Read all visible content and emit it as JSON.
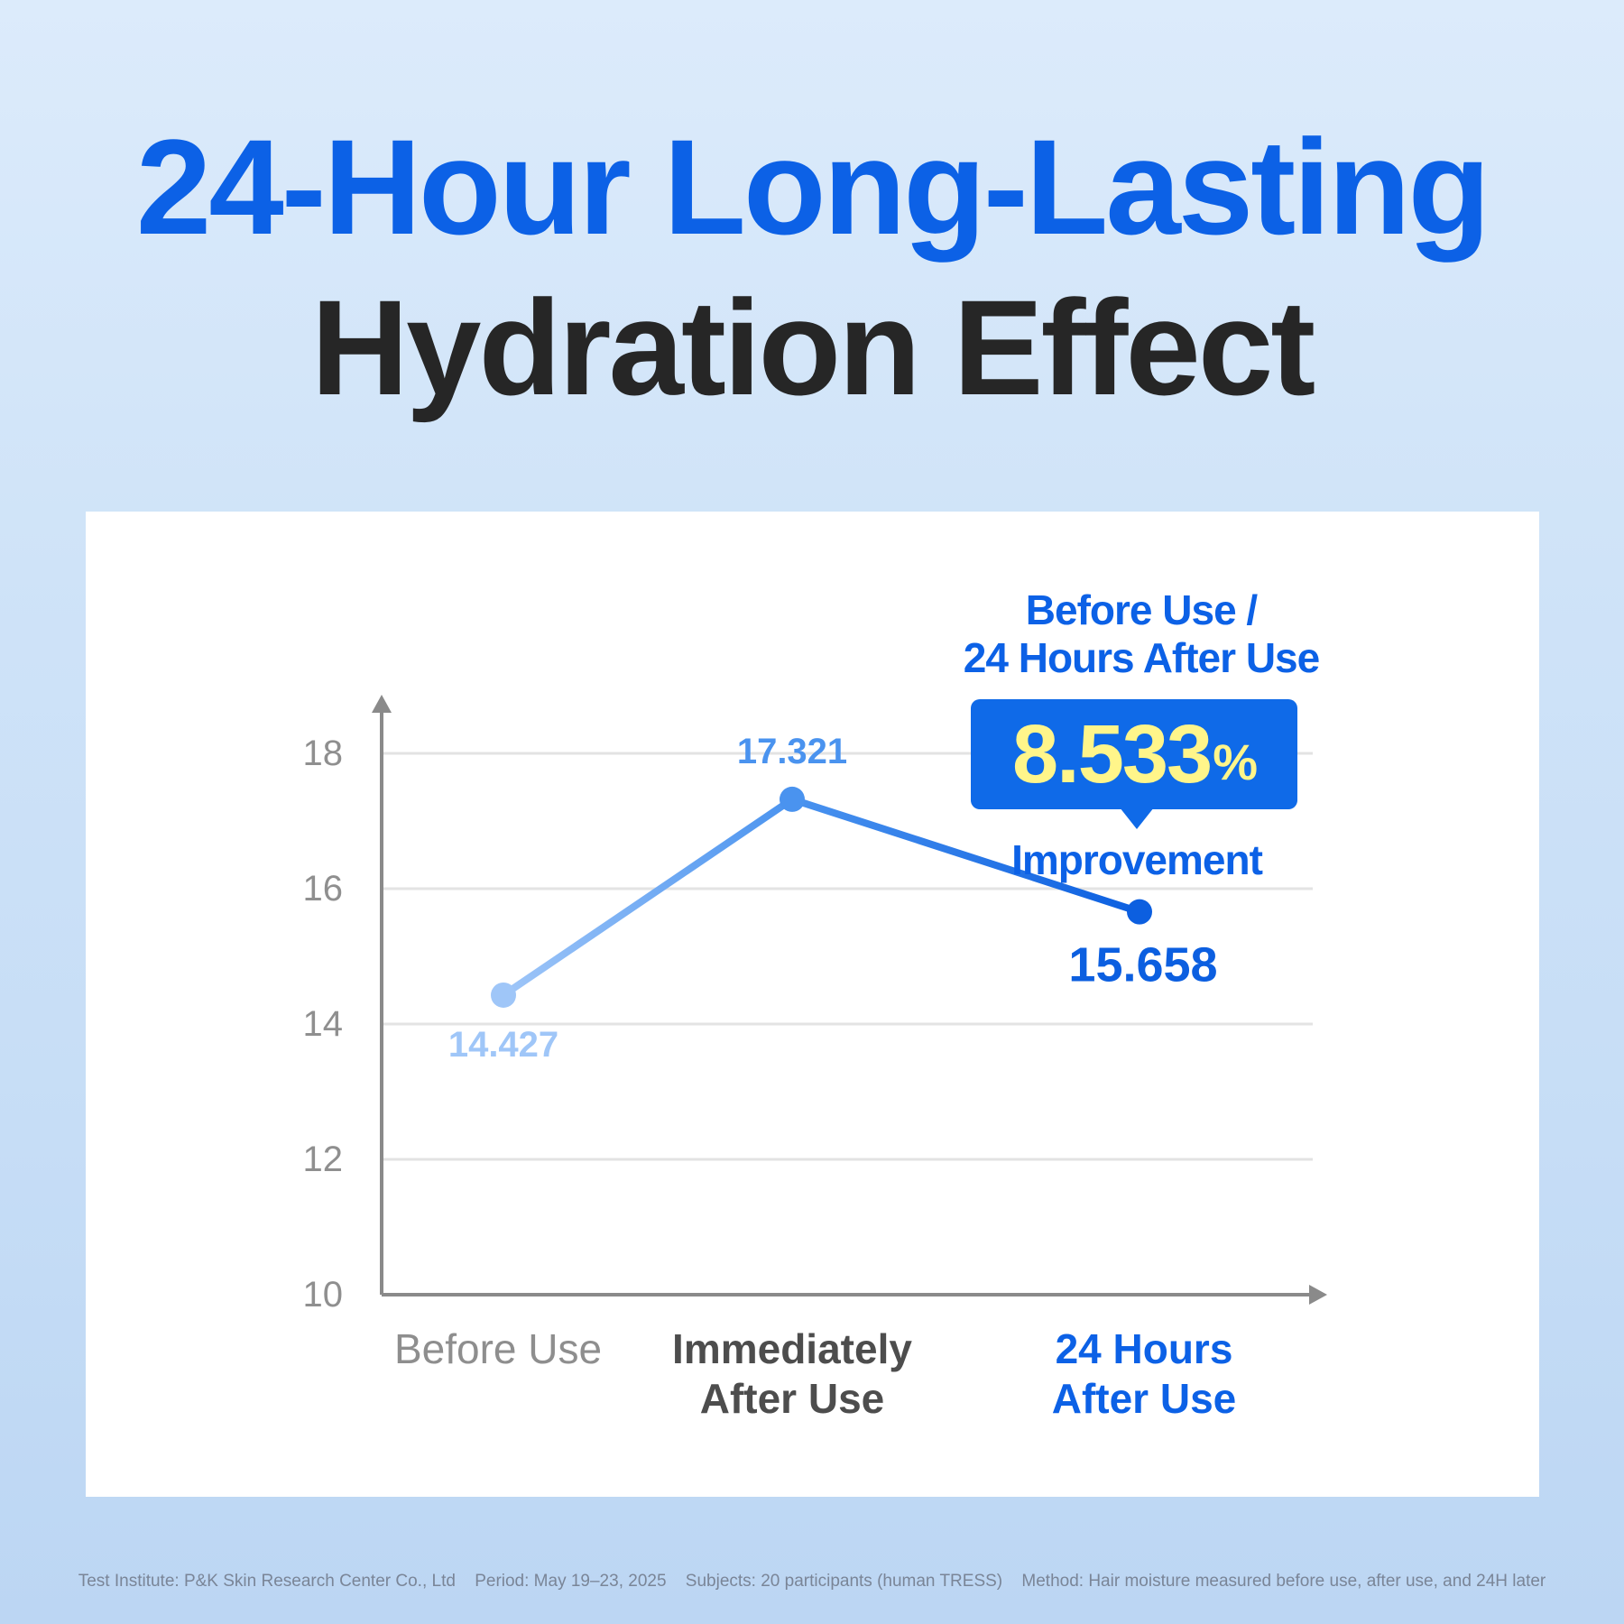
{
  "title": {
    "line1_part1": "24-Hour",
    "line1_part2": "Long-Lasting",
    "line2": "Hydration Effect"
  },
  "callout": {
    "heading_line1": "Before Use /",
    "heading_line2": "24 Hours After Use",
    "value": "8.533",
    "unit": "%",
    "label": "Improvement"
  },
  "footnote": {
    "institute": "Test Institute: P&K Skin Research Center Co., Ltd",
    "period": "Period: May 19–23, 2025",
    "subjects": "Subjects: 20 participants (human TRESS)",
    "method": "Method: Hair moisture measured before use, after use, and 24H later"
  },
  "colors": {
    "brand_blue": "#0c61e6",
    "highlight_yellow": "#fff58a",
    "point_before": "#9fc6f8",
    "point_immediate": "#4a93ef",
    "point_24h": "#0c5fe0",
    "axis": "#8a8a8a",
    "grid": "#e3e3e3"
  },
  "chart_data": {
    "type": "line",
    "categories": [
      "Before Use",
      "Immediately After Use",
      "24 Hours After Use"
    ],
    "category_lines": [
      [
        "Before Use"
      ],
      [
        "Immediately",
        "After Use"
      ],
      [
        "24 Hours",
        "After Use"
      ]
    ],
    "values": [
      14.427,
      17.321,
      15.658
    ],
    "data_labels": [
      "14.427",
      "17.321",
      "15.658"
    ],
    "yticks": [
      "10",
      "12",
      "14",
      "16",
      "18"
    ],
    "ylim": [
      10,
      18
    ],
    "grid": true,
    "title": "",
    "xlabel": "",
    "ylabel": ""
  }
}
